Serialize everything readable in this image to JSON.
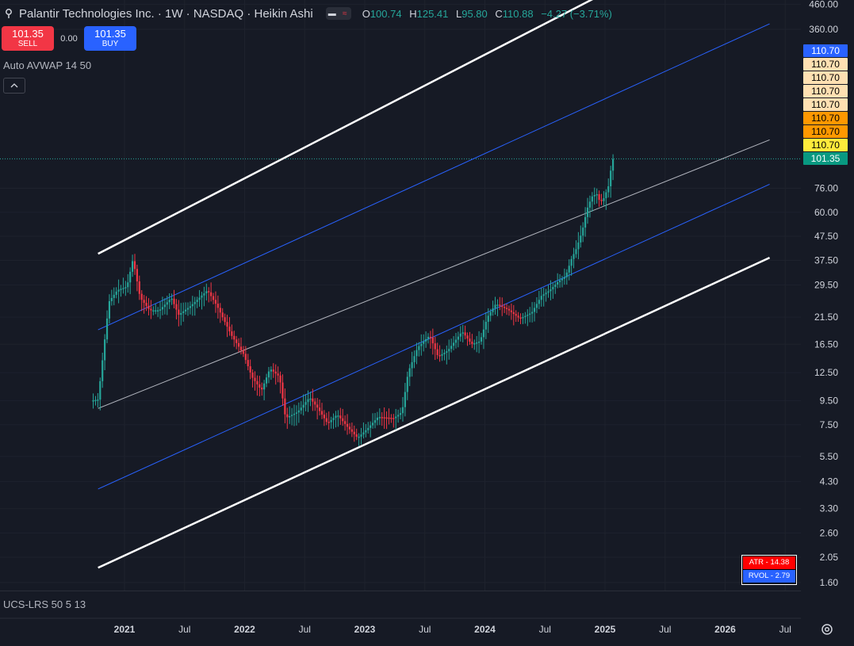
{
  "header": {
    "symbol_title": "Palantir Technologies Inc. · 1W · NASDAQ · Heikin Ashi",
    "ohlc": [
      {
        "key": "O",
        "value": "100.74"
      },
      {
        "key": "H",
        "value": "125.41"
      },
      {
        "key": "L",
        "value": "95.80"
      },
      {
        "key": "C",
        "value": "110.88"
      }
    ],
    "change": "−4.27 (−3.71%)"
  },
  "trade": {
    "sell_price": "101.35",
    "sell_label": "SELL",
    "spread": "0.00",
    "buy_price": "101.35",
    "buy_label": "BUY"
  },
  "indicator_label": "Auto AVWAP 14 50",
  "sub_pane_label": "UCS-LRS 50 5 13",
  "price_tags": [
    {
      "text": "110.70",
      "bg": "#2962ff",
      "fg": "#ffffff"
    },
    {
      "text": "110.70",
      "bg": "#ffe0b2",
      "fg": "#000000"
    },
    {
      "text": "110.70",
      "bg": "#ffe0b2",
      "fg": "#000000"
    },
    {
      "text": "110.70",
      "bg": "#ffe0b2",
      "fg": "#000000"
    },
    {
      "text": "110.70",
      "bg": "#ffe0b2",
      "fg": "#000000"
    },
    {
      "text": "110.70",
      "bg": "#ff9800",
      "fg": "#000000"
    },
    {
      "text": "110.70",
      "bg": "#ff9800",
      "fg": "#000000"
    },
    {
      "text": "110.70",
      "bg": "#ffeb3b",
      "fg": "#000000"
    },
    {
      "text": "101.35",
      "bg": "#089981",
      "fg": "#ffffff"
    }
  ],
  "stats": {
    "atr": "ATR - 14.38",
    "atr_bg": "#ff0000",
    "rvol": "RVOL - 2.79",
    "rvol_bg": "#2962ff"
  },
  "colors": {
    "up": "#26a69a",
    "down": "#f23645",
    "channel_outer": "#ffffff",
    "channel_inner": "#2962ff",
    "mid_line": "#b2b5be",
    "grid": "#1e222d"
  },
  "chart_data": {
    "type": "candlestick",
    "style": "Heikin Ashi",
    "timeframe": "1W",
    "y_scale": "log",
    "y_ticks": [
      460,
      360,
      76,
      60,
      47.5,
      37.5,
      29.5,
      21.5,
      16.5,
      12.5,
      9.5,
      7.5,
      5.5,
      4.3,
      3.3,
      2.6,
      2.05,
      1.6
    ],
    "y_tick_labels": [
      "460.00",
      "360.00",
      "76.00",
      "60.00",
      "47.50",
      "37.50",
      "29.50",
      "21.50",
      "16.50",
      "12.50",
      "9.50",
      "7.50",
      "5.50",
      "4.30",
      "3.30",
      "2.60",
      "2.05",
      "1.60"
    ],
    "x_ticks": [
      {
        "label": "2021",
        "t": 2021.0,
        "year": true
      },
      {
        "label": "Jul",
        "t": 2021.5,
        "year": false
      },
      {
        "label": "2022",
        "t": 2022.0,
        "year": true
      },
      {
        "label": "Jul",
        "t": 2022.5,
        "year": false
      },
      {
        "label": "2023",
        "t": 2023.0,
        "year": true
      },
      {
        "label": "Jul",
        "t": 2023.5,
        "year": false
      },
      {
        "label": "2024",
        "t": 2024.0,
        "year": true
      },
      {
        "label": "Jul",
        "t": 2024.5,
        "year": false
      },
      {
        "label": "2025",
        "t": 2025.0,
        "year": true
      },
      {
        "label": "Jul",
        "t": 2025.5,
        "year": false
      },
      {
        "label": "2026",
        "t": 2026.0,
        "year": true
      },
      {
        "label": "Jul",
        "t": 2026.5,
        "year": false
      }
    ],
    "last_price": 101.35,
    "path_points": [
      [
        2020.73,
        9.5
      ],
      [
        2020.79,
        9.6
      ],
      [
        2020.88,
        25
      ],
      [
        2020.95,
        28
      ],
      [
        2021.03,
        29
      ],
      [
        2021.08,
        38
      ],
      [
        2021.14,
        26
      ],
      [
        2021.22,
        23
      ],
      [
        2021.3,
        23
      ],
      [
        2021.4,
        26
      ],
      [
        2021.46,
        22
      ],
      [
        2021.56,
        24
      ],
      [
        2021.7,
        28
      ],
      [
        2021.78,
        24
      ],
      [
        2021.9,
        18
      ],
      [
        2022.0,
        15
      ],
      [
        2022.07,
        12
      ],
      [
        2022.15,
        10.5
      ],
      [
        2022.22,
        13
      ],
      [
        2022.3,
        12
      ],
      [
        2022.35,
        8
      ],
      [
        2022.45,
        8.5
      ],
      [
        2022.55,
        9.8
      ],
      [
        2022.62,
        8.8
      ],
      [
        2022.7,
        7.6
      ],
      [
        2022.78,
        8.3
      ],
      [
        2022.87,
        7.3
      ],
      [
        2022.95,
        6.6
      ],
      [
        2023.03,
        7.2
      ],
      [
        2023.12,
        8.1
      ],
      [
        2023.25,
        8.0
      ],
      [
        2023.32,
        8.5
      ],
      [
        2023.37,
        12.5
      ],
      [
        2023.45,
        16
      ],
      [
        2023.55,
        18
      ],
      [
        2023.62,
        14.6
      ],
      [
        2023.7,
        15.5
      ],
      [
        2023.82,
        18.7
      ],
      [
        2023.9,
        16.5
      ],
      [
        2023.97,
        17
      ],
      [
        2024.03,
        21.5
      ],
      [
        2024.1,
        24.5
      ],
      [
        2024.2,
        23.2
      ],
      [
        2024.3,
        21.2
      ],
      [
        2024.4,
        22.5
      ],
      [
        2024.48,
        26.5
      ],
      [
        2024.55,
        28
      ],
      [
        2024.62,
        30.5
      ],
      [
        2024.68,
        32
      ],
      [
        2024.73,
        38
      ],
      [
        2024.77,
        42
      ],
      [
        2024.82,
        50
      ],
      [
        2024.86,
        62
      ],
      [
        2024.9,
        70
      ],
      [
        2024.94,
        72
      ],
      [
        2024.97,
        66
      ],
      [
        2025.0,
        69
      ],
      [
        2025.04,
        78
      ],
      [
        2025.07,
        101
      ]
    ],
    "channel": {
      "t_start": 2020.78,
      "t_end": 2026.37,
      "outer_upper": [
        40,
        1180
      ],
      "upper": [
        19,
        380
      ],
      "mid": [
        8.8,
        122
      ],
      "lower": [
        4.0,
        79
      ],
      "outer_lower": [
        1.85,
        38.5
      ]
    }
  }
}
